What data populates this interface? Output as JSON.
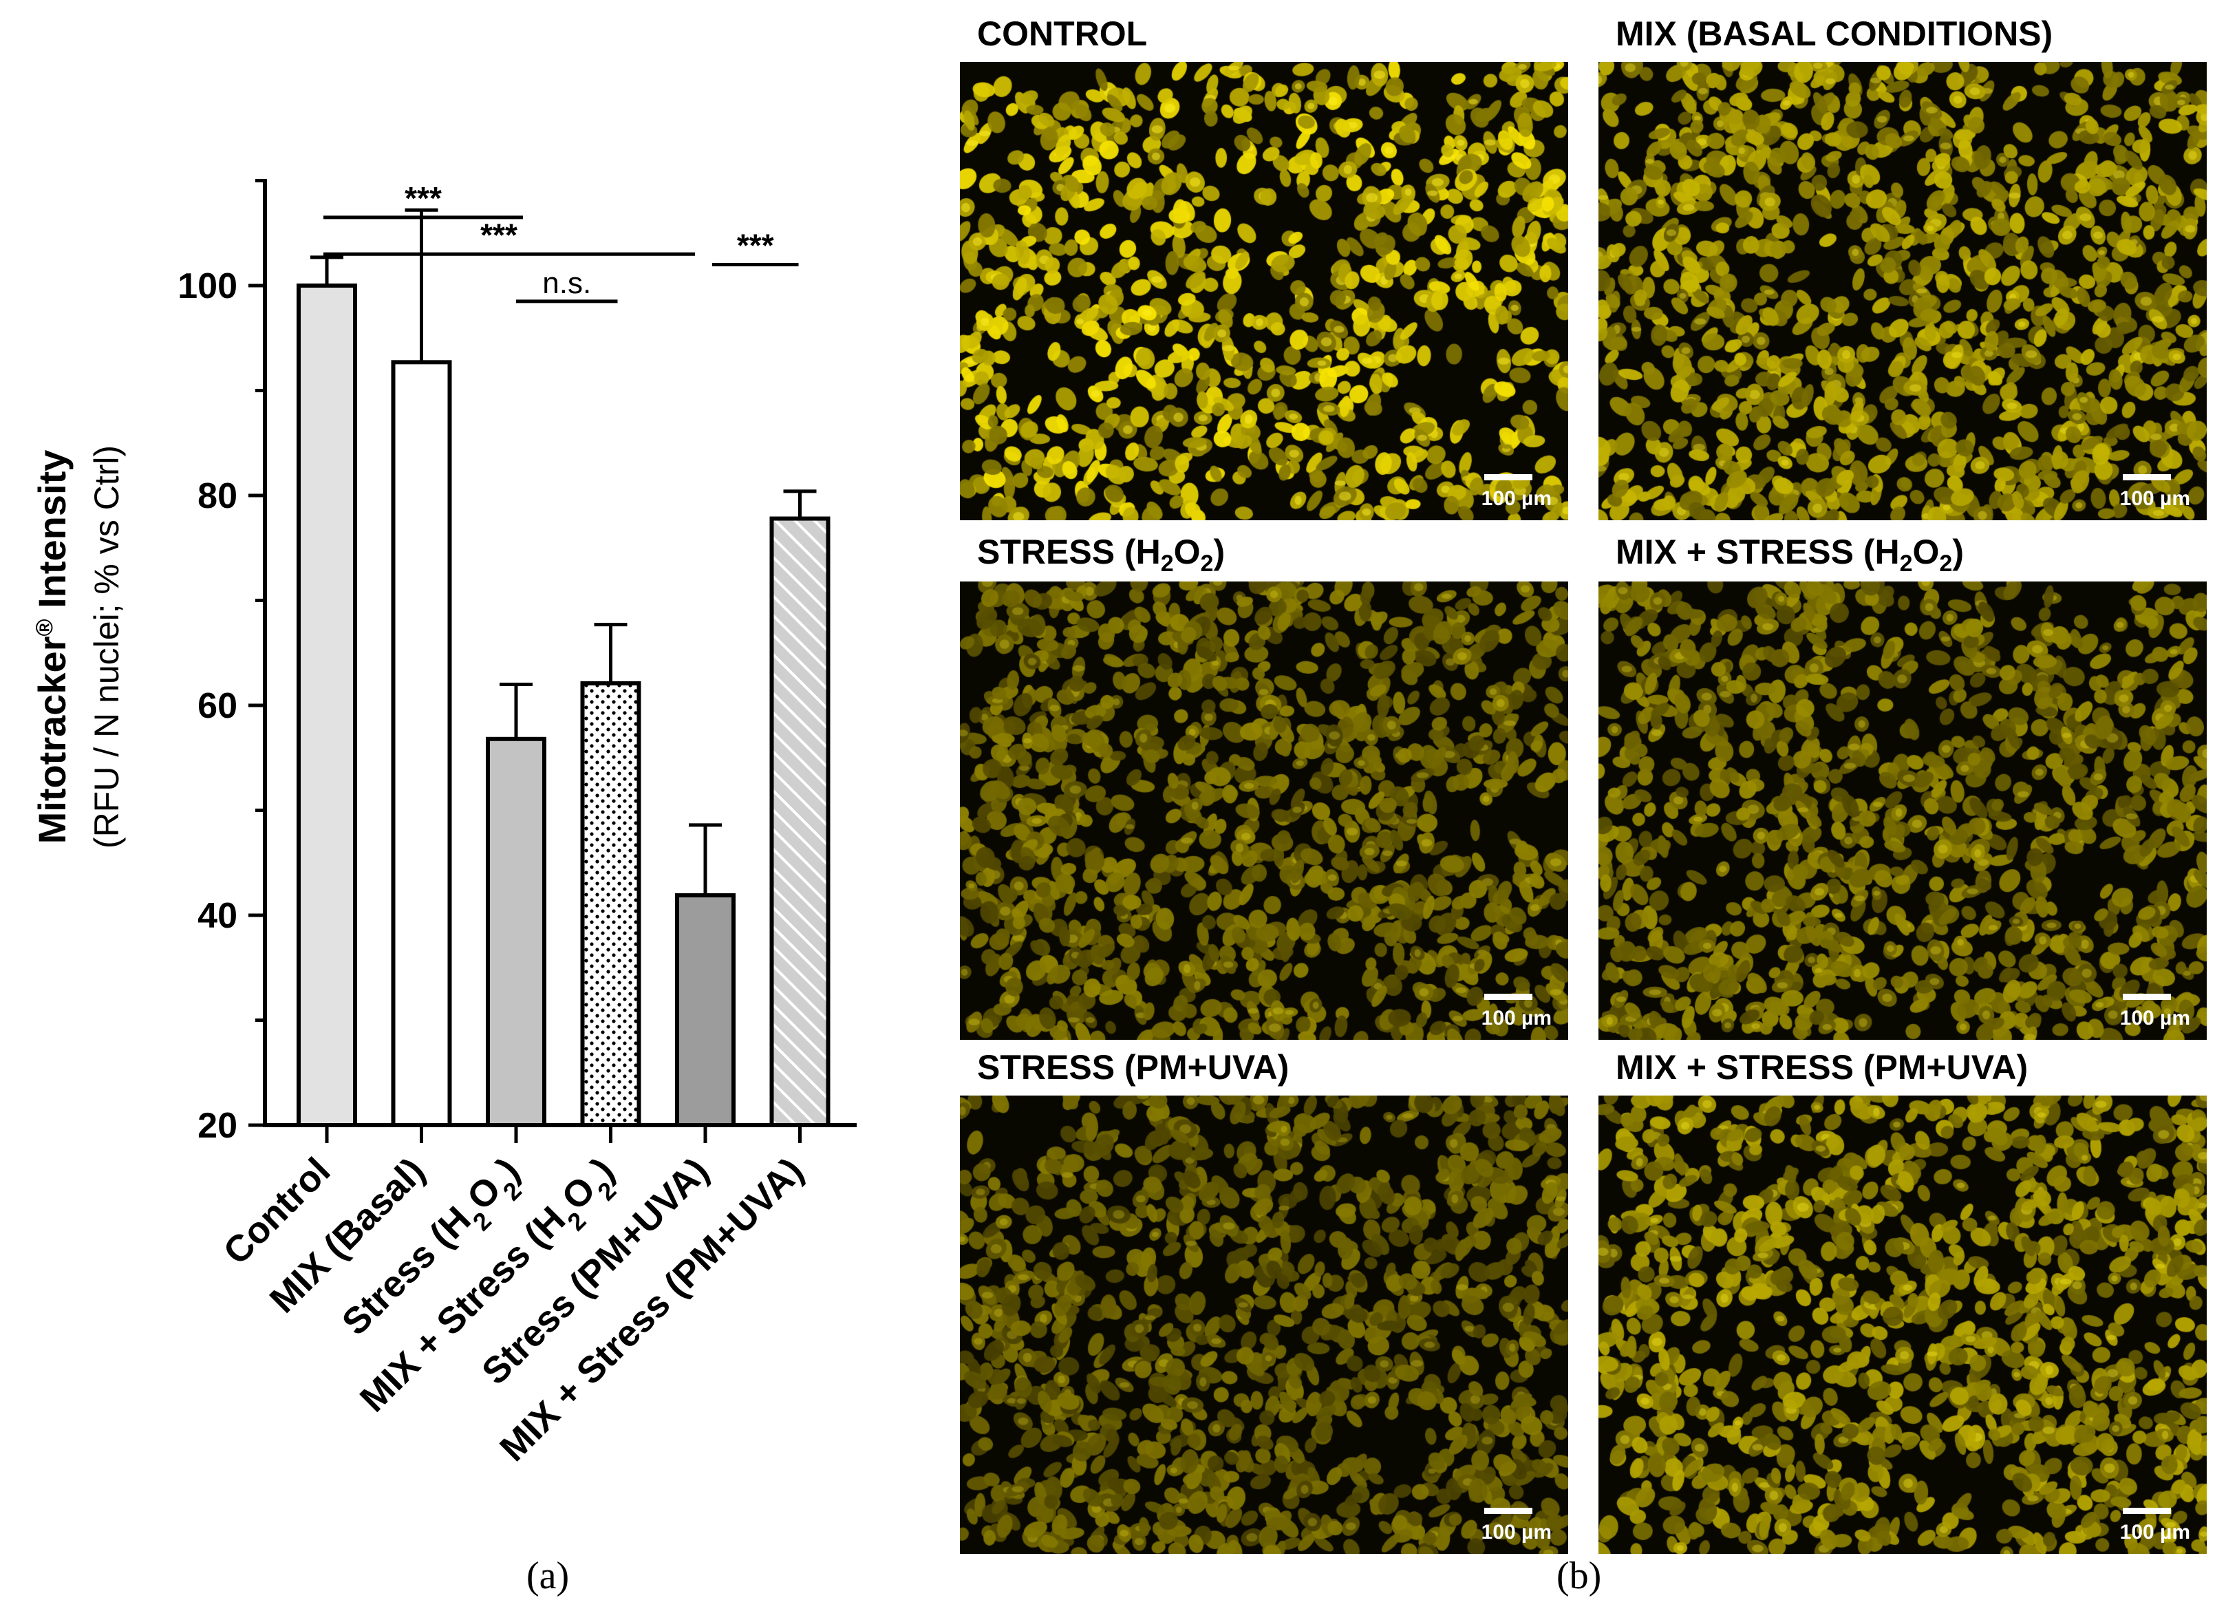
{
  "chart_data": {
    "type": "bar",
    "categories": [
      "Control",
      "MIX (Basal)",
      "Stress (H2O2)",
      "MIX + Stress (H2O2)",
      "Stress (PM+UVA)",
      "MIX + Stress (PM+UVA)"
    ],
    "values": [
      100,
      92.7,
      56.8,
      62.1,
      41.9,
      77.8
    ],
    "errors": [
      2.7,
      14.5,
      5.2,
      5.6,
      6.7,
      2.6
    ],
    "ylabel_main": "Mitotracker® Intensity",
    "ylabel_sub": "(RFU / N nuclei; % vs Ctrl)",
    "ylim": [
      20,
      110
    ],
    "yticks": [
      20,
      40,
      60,
      80,
      100
    ],
    "bar_styles": [
      {
        "fill": "#e2e2e2",
        "pattern": "solid"
      },
      {
        "fill": "#ffffff",
        "pattern": "solid"
      },
      {
        "fill": "#c3c3c3",
        "pattern": "solid"
      },
      {
        "fill": "#ffffff",
        "pattern": "dots"
      },
      {
        "fill": "#9c9c9c",
        "pattern": "solid"
      },
      {
        "fill": "#cfcfcf",
        "pattern": "hatch"
      }
    ],
    "significance": [
      {
        "from": 0,
        "to": 2,
        "level": 106.5,
        "label": "***"
      },
      {
        "from": 0,
        "to": 4,
        "level": 103.0,
        "label": "***"
      },
      {
        "from": 2,
        "to": 3,
        "level": 98.5,
        "label": "n.s."
      },
      {
        "from": 4,
        "to": 5,
        "level": 102.0,
        "label": "***"
      }
    ],
    "panel_label": "(a)"
  },
  "micrographs": {
    "panel_label": "(b)",
    "scale_label": "100 µm",
    "panels": [
      {
        "title": "CONTROL",
        "sub": "",
        "title_end": "",
        "brightness": 1.0
      },
      {
        "title": "MIX (BASAL CONDITIONS)",
        "sub": "",
        "title_end": "",
        "brightness": 0.78
      },
      {
        "title": "STRESS   (H",
        "sub": "2",
        "title_mid": "O",
        "sub2": "2",
        "title_end": ")",
        "brightness": 0.55
      },
      {
        "title": "MIX + STRESS   (H",
        "sub": "2",
        "title_mid": "O",
        "sub2": "2",
        "title_end": ")",
        "brightness": 0.6
      },
      {
        "title": "STRESS (PM+UVA)",
        "sub": "",
        "title_end": "",
        "brightness": 0.5
      },
      {
        "title": "MIX + STRESS (PM+UVA)",
        "sub": "",
        "title_end": "",
        "brightness": 0.72
      }
    ]
  }
}
